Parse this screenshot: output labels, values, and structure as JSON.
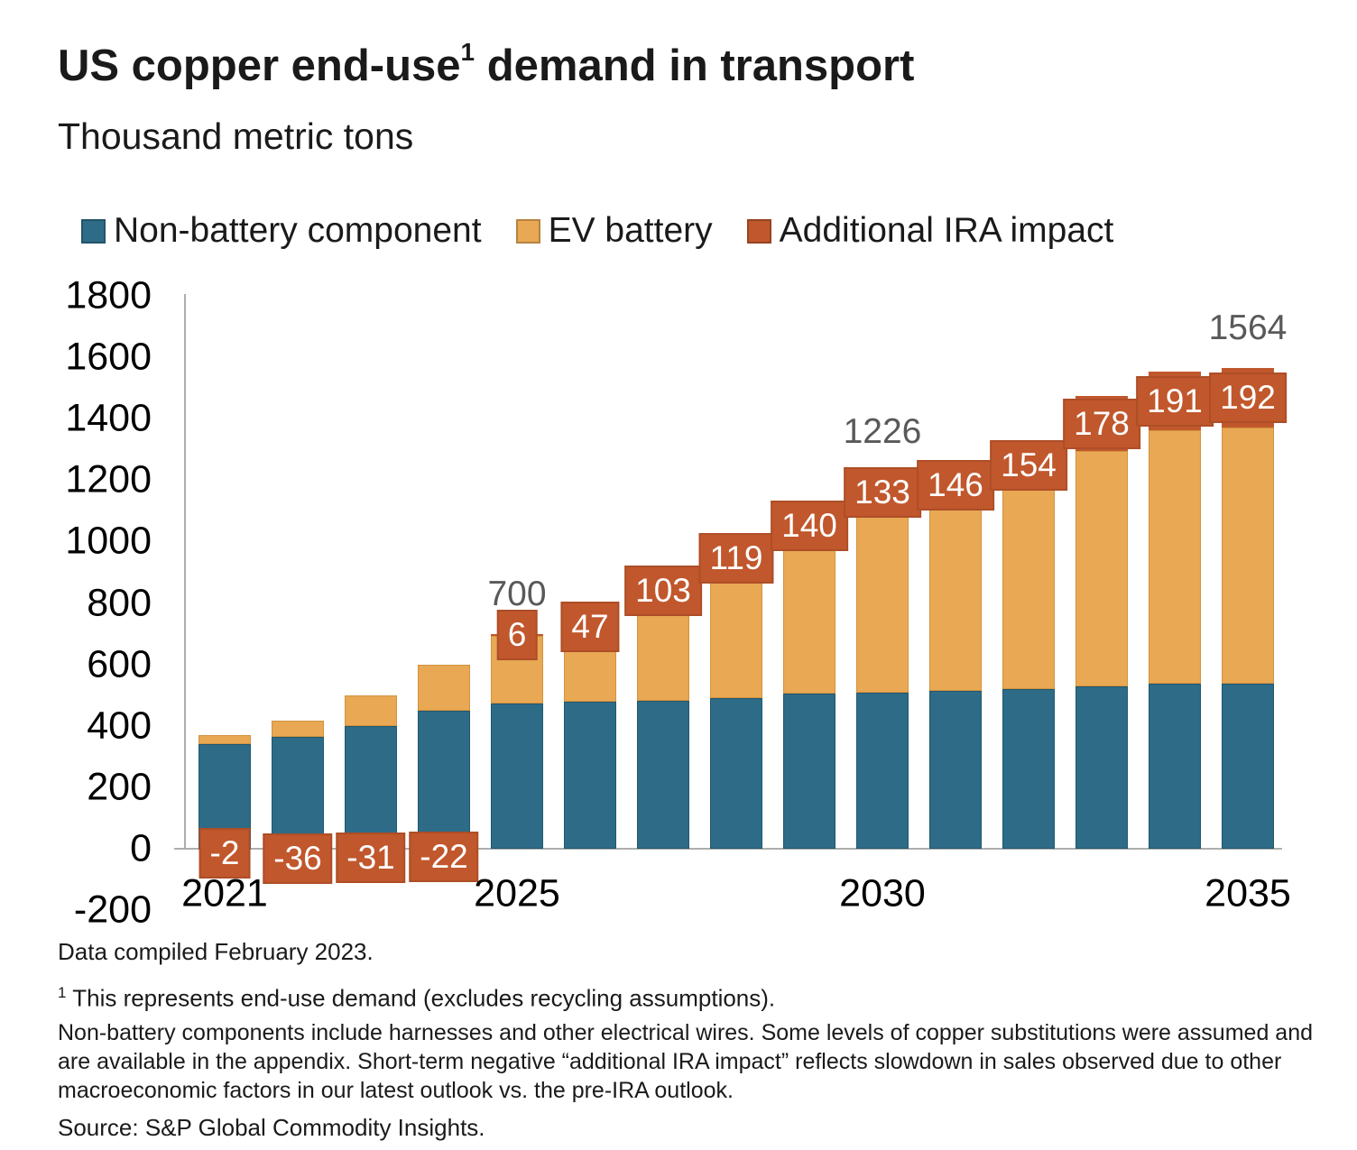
{
  "header": {
    "title_main": "US copper end-use",
    "title_superscript": "1",
    "title_suffix": " demand in transport",
    "subtitle": "Thousand metric tons"
  },
  "legend": {
    "items": [
      {
        "label": "Non-battery component",
        "color": "#2e6b87"
      },
      {
        "label": "EV battery",
        "color": "#e8a854"
      },
      {
        "label": "Additional IRA impact",
        "color": "#c1572c"
      }
    ]
  },
  "chart_data": {
    "type": "bar",
    "stacked": true,
    "title": "US copper end-use demand in transport",
    "ylabel": "Thousand metric tons",
    "categories": [
      2021,
      2022,
      2023,
      2024,
      2025,
      2026,
      2027,
      2028,
      2029,
      2030,
      2031,
      2032,
      2033,
      2034,
      2035
    ],
    "series": [
      {
        "name": "Non-battery component",
        "color": "#2e6b87",
        "border_color": "#1f5870",
        "values": [
          340,
          365,
          400,
          450,
          472,
          478,
          482,
          490,
          505,
          508,
          514,
          521,
          528,
          536,
          537
        ]
      },
      {
        "name": "EV battery",
        "color": "#e8a854",
        "border_color": "#d2923f",
        "values": [
          30,
          52,
          99,
          150,
          222,
          221,
          305,
          396,
          475,
          585,
          596,
          651,
          767,
          826,
          835
        ]
      },
      {
        "name": "Additional IRA impact",
        "color": "#c1572c",
        "border_color": "#a84a24",
        "values": [
          -2,
          -36,
          -31,
          -22,
          6,
          47,
          103,
          119,
          140,
          133,
          146,
          154,
          178,
          191,
          192
        ]
      }
    ],
    "segment_labels": [
      "-2",
      "-36",
      "-31",
      "-22",
      "6",
      "47",
      "103",
      "119",
      "140",
      "133",
      "146",
      "154",
      "178",
      "191",
      "192"
    ],
    "total_labels": [
      {
        "category": 2025,
        "label": "700"
      },
      {
        "category": 2030,
        "label": "1226"
      },
      {
        "category": 2035,
        "label": "1564"
      }
    ],
    "y_axis": {
      "min": -200,
      "max": 1800,
      "step": 200,
      "tick_labels": [
        "1800",
        "1600",
        "1400",
        "1200",
        "1000",
        "800",
        "600",
        "400",
        "200",
        "0",
        "-200"
      ]
    },
    "x_axis": {
      "tick_labels": [
        "2021",
        "2025",
        "2030",
        "2035"
      ]
    },
    "grid": false,
    "legend_position": "top",
    "colors": {
      "total_label_text": "#595959",
      "segment_label_text": "#ffffff",
      "axis_line": "#aeaeae",
      "tick_text": "#000000"
    }
  },
  "footer": {
    "compiled": "Data compiled February 2023.",
    "footnote_marker": "1",
    "footnote1": " This represents end-use demand (excludes recycling assumptions).",
    "footnote_body": "Non-battery components include harnesses and other electrical wires. Some levels of copper substitutions were assumed and are available in the appendix. Short-term negative “additional IRA impact” reflects slowdown in sales observed due to other macroeconomic factors in our latest outlook vs. the pre-IRA outlook.",
    "source": "Source: S&P Global Commodity Insights."
  }
}
